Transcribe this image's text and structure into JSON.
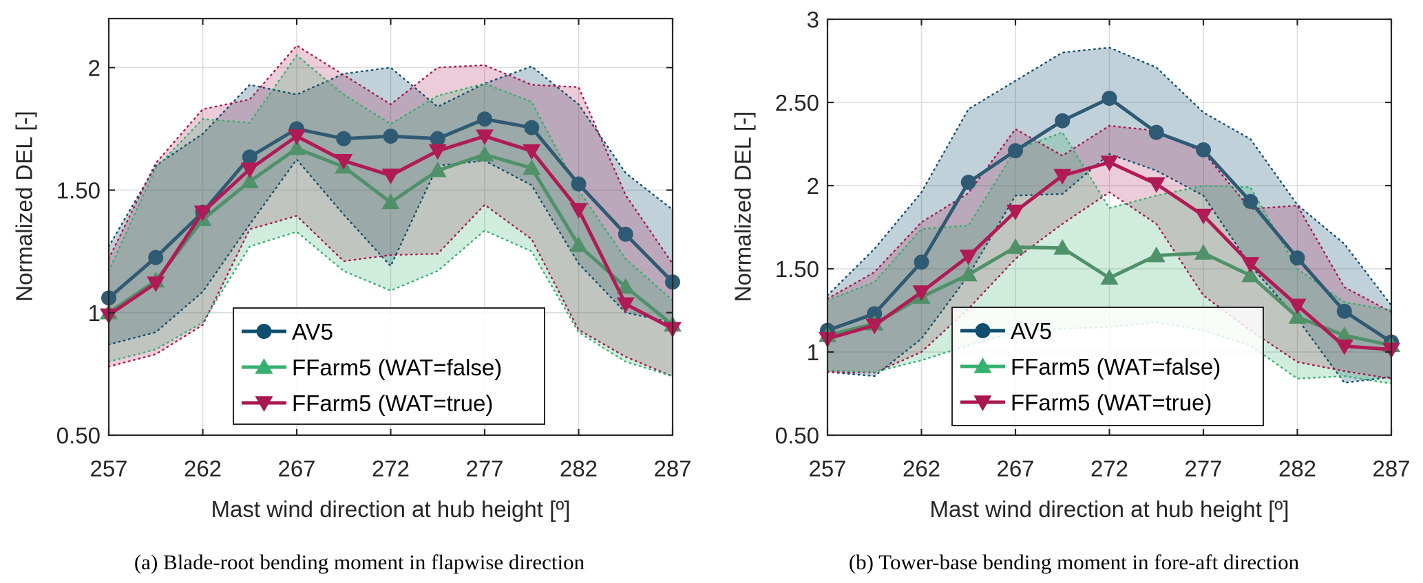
{
  "chart_data": [
    {
      "type": "line",
      "panel": "a",
      "caption": "(a) Blade-root bending moment in flapwise direction",
      "title": "",
      "xlabel": "Mast wind direction at hub height [º]",
      "ylabel": "Normalized DEL [-]",
      "xlim": [
        257,
        287
      ],
      "ylim": [
        0.5,
        2.2
      ],
      "xticks": [
        257,
        262,
        267,
        272,
        277,
        282,
        287
      ],
      "xtick_labels": [
        "257",
        "262",
        "267",
        "272",
        "277",
        "282",
        "287"
      ],
      "yticks": [
        0.5,
        1,
        1.5,
        2
      ],
      "ytick_labels": [
        "0.50",
        "1",
        "1.50",
        "2"
      ],
      "grid": true,
      "legend_position": "lower-center",
      "x": [
        257,
        259.5,
        262,
        264.5,
        267,
        269.5,
        272,
        274.5,
        277,
        279.5,
        282,
        284.5,
        287
      ],
      "series": [
        {
          "name": "AV5",
          "color": "#0f4e6e",
          "marker": "circle",
          "values": [
            1.06,
            1.225,
            1.41,
            1.635,
            1.75,
            1.71,
            1.72,
            1.71,
            1.79,
            1.755,
            1.525,
            1.32,
            1.125
          ],
          "band_upper": [
            1.27,
            1.6,
            1.73,
            1.93,
            1.89,
            1.975,
            2.0,
            1.84,
            1.935,
            2.005,
            1.85,
            1.57,
            1.42
          ],
          "band_lower": [
            0.87,
            0.92,
            1.085,
            1.36,
            1.625,
            1.4,
            1.19,
            1.6,
            1.62,
            1.52,
            1.2,
            1.0,
            0.96
          ]
        },
        {
          "name": "FFarm5 (WAT=false)",
          "color": "#35b06f",
          "marker": "triangle-up",
          "values": [
            1.0,
            1.13,
            1.38,
            1.535,
            1.67,
            1.595,
            1.45,
            1.58,
            1.645,
            1.59,
            1.275,
            1.105,
            0.95
          ],
          "band_upper": [
            1.17,
            1.59,
            1.79,
            1.775,
            2.05,
            1.89,
            1.77,
            1.885,
            1.935,
            1.86,
            1.5,
            1.22,
            1.05
          ],
          "band_lower": [
            0.8,
            0.85,
            0.96,
            1.27,
            1.33,
            1.17,
            1.09,
            1.17,
            1.335,
            1.25,
            0.92,
            0.8,
            0.74
          ]
        },
        {
          "name": "FFarm5 (WAT=true)",
          "color": "#a8174f",
          "marker": "triangle-down",
          "values": [
            0.99,
            1.12,
            1.41,
            1.585,
            1.72,
            1.62,
            1.56,
            1.66,
            1.72,
            1.66,
            1.42,
            1.035,
            0.935
          ],
          "band_upper": [
            1.22,
            1.61,
            1.83,
            1.87,
            2.09,
            1.97,
            1.85,
            2.0,
            2.01,
            1.93,
            1.92,
            1.48,
            1.2
          ],
          "band_lower": [
            0.78,
            0.83,
            0.95,
            1.34,
            1.395,
            1.21,
            1.235,
            1.24,
            1.44,
            1.3,
            0.93,
            0.82,
            0.74
          ]
        }
      ]
    },
    {
      "type": "line",
      "panel": "b",
      "caption": "(b) Tower-base bending moment in fore-aft direction",
      "title": "",
      "xlabel": "Mast wind direction at hub height [º]",
      "ylabel": "Normalized DEL [-]",
      "xlim": [
        257,
        287
      ],
      "ylim": [
        0.5,
        3.0
      ],
      "xticks": [
        257,
        262,
        267,
        272,
        277,
        282,
        287
      ],
      "xtick_labels": [
        "257",
        "262",
        "267",
        "272",
        "277",
        "282",
        "287"
      ],
      "yticks": [
        0.5,
        1,
        1.5,
        2,
        2.5,
        3
      ],
      "ytick_labels": [
        "0.50",
        "1",
        "1.50",
        "2",
        "2.50",
        "3"
      ],
      "grid": true,
      "legend_position": "lower-center",
      "x": [
        257,
        259.5,
        262,
        264.5,
        267,
        269.5,
        272,
        274.5,
        277,
        279.5,
        282,
        284.5,
        287
      ],
      "series": [
        {
          "name": "AV5",
          "color": "#0f4e6e",
          "marker": "circle",
          "values": [
            1.13,
            1.23,
            1.54,
            2.02,
            2.21,
            2.39,
            2.525,
            2.32,
            2.215,
            1.905,
            1.565,
            1.245,
            1.06
          ],
          "band_upper": [
            1.34,
            1.62,
            1.96,
            2.46,
            2.63,
            2.8,
            2.83,
            2.71,
            2.44,
            2.28,
            1.885,
            1.65,
            1.28
          ],
          "band_lower": [
            0.88,
            0.855,
            1.08,
            1.46,
            1.94,
            1.95,
            2.19,
            2.09,
            1.94,
            1.52,
            1.2,
            0.815,
            0.85
          ]
        },
        {
          "name": "FFarm5 (WAT=false)",
          "color": "#35b06f",
          "marker": "triangle-up",
          "values": [
            1.1,
            1.17,
            1.33,
            1.465,
            1.63,
            1.625,
            1.445,
            1.58,
            1.595,
            1.46,
            1.21,
            1.1,
            1.04
          ],
          "band_upper": [
            1.31,
            1.42,
            1.74,
            1.76,
            2.215,
            2.32,
            1.865,
            1.94,
            2.0,
            1.99,
            1.5,
            1.3,
            1.25
          ],
          "band_lower": [
            0.89,
            0.88,
            0.95,
            1.04,
            1.12,
            1.14,
            1.15,
            1.18,
            1.13,
            1.04,
            0.84,
            0.855,
            0.81
          ]
        },
        {
          "name": "FFarm5 (WAT=true)",
          "color": "#a8174f",
          "marker": "triangle-down",
          "values": [
            1.08,
            1.16,
            1.36,
            1.575,
            1.845,
            2.06,
            2.14,
            2.01,
            1.82,
            1.53,
            1.28,
            1.035,
            1.015
          ],
          "band_upper": [
            1.32,
            1.48,
            1.78,
            1.955,
            2.34,
            2.18,
            2.36,
            2.33,
            2.2,
            1.86,
            1.88,
            1.39,
            1.24
          ],
          "band_lower": [
            0.88,
            0.875,
            1.0,
            1.26,
            1.56,
            1.77,
            1.96,
            1.77,
            1.34,
            1.13,
            0.94,
            0.885,
            0.84
          ]
        }
      ]
    }
  ]
}
